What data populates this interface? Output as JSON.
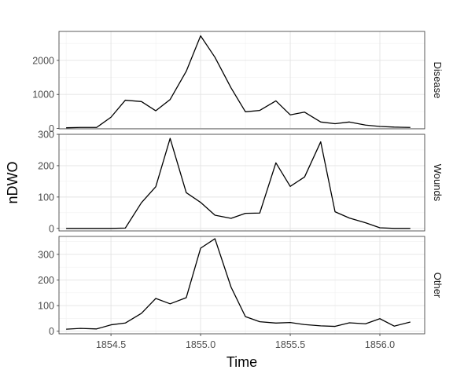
{
  "chart_data": {
    "type": "line",
    "xlabel": "Time",
    "ylabel": "nDWO",
    "x_ticks": [
      1854.5,
      1855.0,
      1855.5,
      1856.0
    ],
    "x_tick_labels": [
      "1854.5",
      "1855.0",
      "1855.5",
      "1856.0"
    ],
    "xlim": [
      1854.21,
      1856.25
    ],
    "grid": true,
    "facets": [
      {
        "name": "Disease",
        "ylim": [
          -10,
          2850
        ],
        "y_ticks": [
          0,
          1000,
          2000
        ],
        "y_tick_labels": [
          "0",
          "1000",
          "2000"
        ],
        "x": [
          1854.25,
          1854.33,
          1854.42,
          1854.5,
          1854.58,
          1854.67,
          1854.75,
          1854.83,
          1854.92,
          1855.0,
          1855.08,
          1855.17,
          1855.25,
          1855.33,
          1855.42,
          1855.5,
          1855.58,
          1855.67,
          1855.75,
          1855.83,
          1855.92,
          1856.0,
          1856.08,
          1856.17
        ],
        "values": [
          20,
          30,
          30,
          330,
          830,
          790,
          520,
          850,
          1680,
          2720,
          2090,
          1190,
          490,
          530,
          810,
          400,
          480,
          190,
          140,
          190,
          100,
          60,
          40,
          30
        ]
      },
      {
        "name": "Wounds",
        "ylim": [
          -8,
          300
        ],
        "y_ticks": [
          0,
          100,
          200,
          300
        ],
        "y_tick_labels": [
          "0",
          "100",
          "200",
          "300"
        ],
        "x": [
          1854.25,
          1854.33,
          1854.42,
          1854.5,
          1854.58,
          1854.67,
          1854.75,
          1854.83,
          1854.92,
          1855.0,
          1855.08,
          1855.17,
          1855.25,
          1855.33,
          1855.42,
          1855.5,
          1855.58,
          1855.67,
          1855.75,
          1855.83,
          1855.92,
          1856.0,
          1856.08,
          1856.17
        ],
        "values": [
          0,
          0,
          0,
          0,
          1,
          82,
          133,
          287,
          114,
          83,
          42,
          32,
          48,
          49,
          209,
          134,
          164,
          276,
          53,
          33,
          18,
          2,
          0,
          0
        ]
      },
      {
        "name": "Other",
        "ylim": [
          -10,
          370
        ],
        "y_ticks": [
          0,
          100,
          200,
          300
        ],
        "y_tick_labels": [
          "0",
          "100",
          "200",
          "300"
        ],
        "x": [
          1854.25,
          1854.33,
          1854.42,
          1854.5,
          1854.58,
          1854.67,
          1854.75,
          1854.83,
          1854.92,
          1855.0,
          1855.08,
          1855.17,
          1855.25,
          1855.33,
          1855.42,
          1855.5,
          1855.58,
          1855.67,
          1855.75,
          1855.83,
          1855.92,
          1856.0,
          1856.08,
          1856.17
        ],
        "values": [
          8,
          11,
          9,
          25,
          32,
          70,
          128,
          107,
          131,
          324,
          361,
          172,
          57,
          37,
          32,
          34,
          26,
          21,
          19,
          33,
          29,
          49,
          20,
          36
        ]
      }
    ]
  }
}
